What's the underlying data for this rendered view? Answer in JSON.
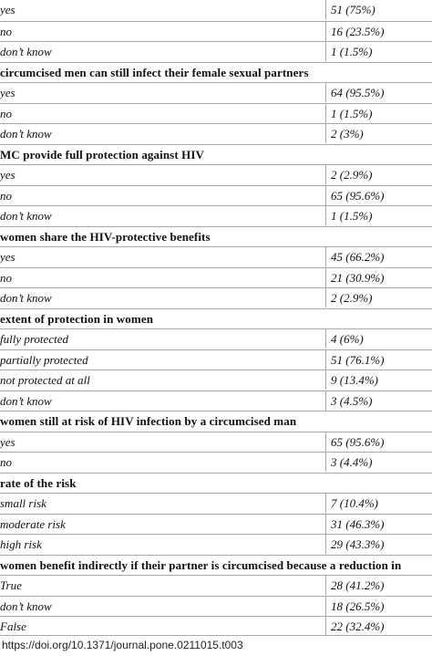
{
  "rows": [
    {
      "type": "data",
      "label": "yes",
      "value": "51 (75%)"
    },
    {
      "type": "data",
      "label": "no",
      "value": "16 (23.5%)"
    },
    {
      "type": "data",
      "label": "don’t know",
      "value": "1 (1.5%)"
    },
    {
      "type": "section",
      "label": "circumcised men can still infect their female sexual partners"
    },
    {
      "type": "data",
      "label": "yes",
      "value": "64 (95.5%)"
    },
    {
      "type": "data",
      "label": "no",
      "value": "1 (1.5%)"
    },
    {
      "type": "data",
      "label": "don’t know",
      "value": "2 (3%)"
    },
    {
      "type": "section",
      "label": "MC provide full protection against HIV"
    },
    {
      "type": "data",
      "label": "yes",
      "value": "2 (2.9%)"
    },
    {
      "type": "data",
      "label": "no",
      "value": "65 (95.6%)"
    },
    {
      "type": "data",
      "label": "don’t know",
      "value": "1 (1.5%)"
    },
    {
      "type": "section",
      "label": "women share the HIV-protective benefits"
    },
    {
      "type": "data",
      "label": "yes",
      "value": "45 (66.2%)"
    },
    {
      "type": "data",
      "label": "no",
      "value": "21 (30.9%)"
    },
    {
      "type": "data",
      "label": "don’t know",
      "value": "2 (2.9%)"
    },
    {
      "type": "section",
      "label": "extent of protection in women"
    },
    {
      "type": "data",
      "label": "fully protected",
      "value": "4 (6%)"
    },
    {
      "type": "data",
      "label": "partially protected",
      "value": "51 (76.1%)"
    },
    {
      "type": "data",
      "label": "not protected at all",
      "value": "9 (13.4%)"
    },
    {
      "type": "data",
      "label": "don’t know",
      "value": "3 (4.5%)"
    },
    {
      "type": "section",
      "label": "women still at risk of HIV infection by a circumcised man"
    },
    {
      "type": "data",
      "label": "yes",
      "value": "65 (95.6%)"
    },
    {
      "type": "data",
      "label": "no",
      "value": "3 (4.4%)"
    },
    {
      "type": "section",
      "label": "rate of the risk"
    },
    {
      "type": "data",
      "label": "small risk",
      "value": "7 (10.4%)"
    },
    {
      "type": "data",
      "label": "moderate risk",
      "value": "31 (46.3%)"
    },
    {
      "type": "data",
      "label": "high risk",
      "value": "29 (43.3%)"
    },
    {
      "type": "section",
      "label": "women benefit indirectly if their partner is circumcised because a reduction in"
    },
    {
      "type": "data",
      "label": "True",
      "value": "28 (41.2%)"
    },
    {
      "type": "data",
      "label": "don’t know",
      "value": "18 (26.5%)"
    },
    {
      "type": "data",
      "label": "False",
      "value": "22 (32.4%)"
    }
  ],
  "doi": "https://doi.org/10.1371/journal.pone.0211015.t003"
}
